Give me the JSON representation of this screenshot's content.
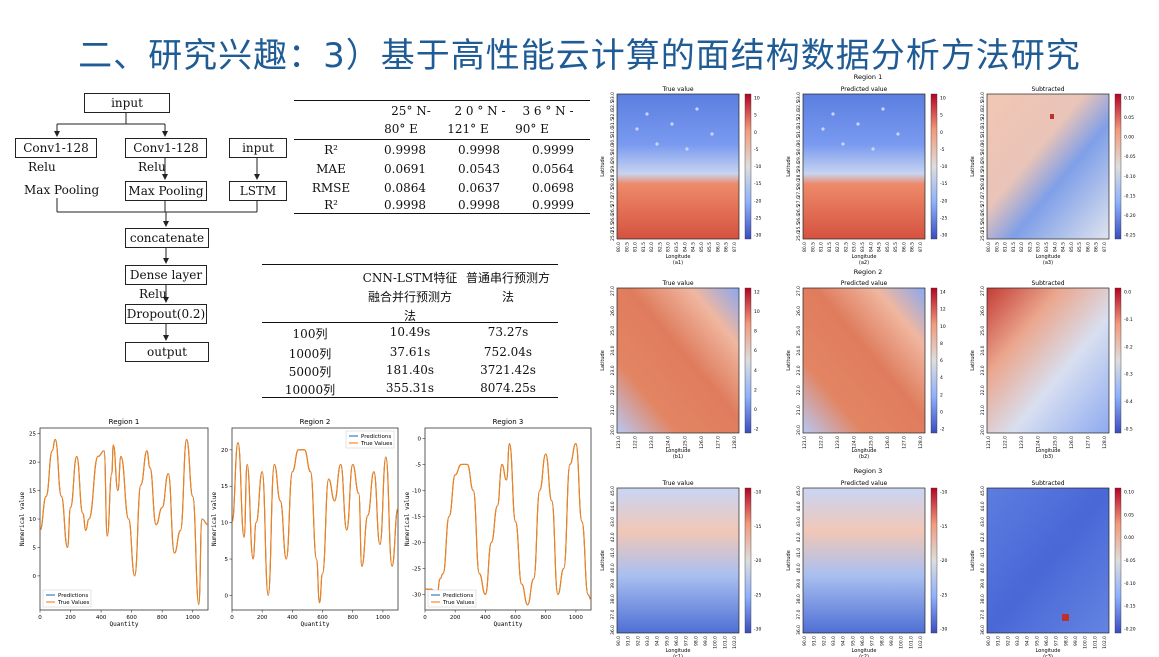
{
  "slide": {
    "title": "二、研究兴趣：3）基于高性能云计算的面结构数据分析方法研究"
  },
  "flow": {
    "input_top": "input",
    "conv1": "Conv1-128",
    "conv2": "Conv1-128",
    "input_right": "input",
    "relu1": "Relu",
    "relu2": "Relu",
    "maxpool1": "Max Pooling",
    "maxpool2": "Max Pooling",
    "lstm": "LSTM",
    "concatenate": "concatenate",
    "dense": "Dense layer",
    "relu3": "Relu",
    "dropout": "Dropout(0.2)",
    "output": "output"
  },
  "metrics_table": {
    "columns": [
      "25° N-80° E",
      "20° N-121° E",
      "36° N-90° E"
    ],
    "col_line1": [
      "25° N-",
      "2 0 ° N -",
      "3 6 ° N -"
    ],
    "col_line2": [
      "80° E",
      "121° E",
      "90° E"
    ],
    "rows": [
      {
        "label": "R²",
        "values": [
          "0.9998",
          "0.9998",
          "0.9999"
        ]
      },
      {
        "label": "MAE",
        "values": [
          "0.0691",
          "0.0543",
          "0.0564"
        ]
      },
      {
        "label": "RMSE",
        "values": [
          "0.0864",
          "0.0637",
          "0.0698"
        ]
      },
      {
        "label": "R²",
        "values": [
          "0.9998",
          "0.9998",
          "0.9999"
        ]
      }
    ]
  },
  "time_table": {
    "col1_lines": [
      "CNN-LSTM特征",
      "融合并行预测方",
      "法"
    ],
    "col2_lines": [
      "普通串行预测方",
      "法"
    ],
    "rows": [
      {
        "label": "100列",
        "v1": "10.49s",
        "v2": "73.27s"
      },
      {
        "label": "1000列",
        "v1": "37.61s",
        "v2": "752.04s"
      },
      {
        "label": "5000列",
        "v1": "181.40s",
        "v2": "3721.42s"
      },
      {
        "label": "10000列",
        "v1": "355.31s",
        "v2": "8074.25s"
      }
    ]
  },
  "chart_data": [
    {
      "type": "line",
      "title": "Region 1",
      "xlabel": "Quantity",
      "ylabel": "Numerical value",
      "xlim": [
        0,
        1100
      ],
      "ylim": [
        -6,
        26
      ],
      "xticks": [
        0,
        200,
        400,
        600,
        800,
        1000
      ],
      "yticks": [
        0,
        5,
        10,
        15,
        20,
        25
      ],
      "legend_position": "lower-left",
      "series": [
        {
          "name": "Predictions",
          "color": "#1f77b4"
        },
        {
          "name": "True Values",
          "color": "#ff7f0e"
        }
      ],
      "x": [
        0,
        40,
        80,
        100,
        140,
        180,
        200,
        240,
        280,
        300,
        320,
        380,
        420,
        440,
        470,
        480,
        510,
        530,
        580,
        620,
        660,
        700,
        720,
        760,
        800,
        840,
        880,
        920,
        960,
        1000,
        1040,
        1060,
        1100
      ],
      "y": [
        8,
        14,
        22,
        24,
        14,
        5,
        12,
        21,
        11,
        8,
        10,
        21,
        22,
        7,
        18,
        23,
        15,
        21,
        10,
        0,
        16,
        22,
        19,
        9,
        12,
        18,
        4,
        8,
        24,
        14,
        -5,
        10,
        9
      ]
    },
    {
      "type": "line",
      "title": "Region 2",
      "xlabel": "Quantity",
      "ylabel": "Numerical value",
      "xlim": [
        0,
        1100
      ],
      "ylim": [
        -2,
        23
      ],
      "xticks": [
        0,
        200,
        400,
        600,
        800,
        1000
      ],
      "yticks": [
        0,
        5,
        10,
        15,
        20
      ],
      "legend_position": "top-right",
      "series": [
        {
          "name": "Predictions",
          "color": "#1f77b4"
        },
        {
          "name": "True Values",
          "color": "#ff7f0e"
        }
      ],
      "x": [
        0,
        40,
        80,
        100,
        140,
        160,
        200,
        240,
        280,
        320,
        360,
        400,
        440,
        480,
        520,
        560,
        580,
        600,
        640,
        680,
        720,
        760,
        800,
        840,
        860,
        900,
        940,
        980,
        1020,
        1060,
        1100
      ],
      "y": [
        10,
        21,
        8,
        18,
        5,
        10,
        17,
        0,
        18,
        13,
        5,
        17,
        20,
        20,
        17,
        5,
        -1,
        3,
        16,
        13,
        18,
        9,
        18,
        14,
        4,
        11,
        17,
        7,
        19,
        4,
        12
      ]
    },
    {
      "type": "line",
      "title": "Region 3",
      "xlabel": "Quantity",
      "ylabel": "Numerical value",
      "xlim": [
        0,
        1100
      ],
      "ylim": [
        -33,
        2
      ],
      "xticks": [
        0,
        200,
        400,
        600,
        800,
        1000
      ],
      "yticks": [
        0,
        -5,
        -10,
        -15,
        -20,
        -25,
        -30
      ],
      "legend_position": "lower-left",
      "series": [
        {
          "name": "Predictions",
          "color": "#1f77b4"
        },
        {
          "name": "True Values",
          "color": "#ff7f0e"
        }
      ],
      "x": [
        0,
        40,
        80,
        100,
        120,
        160,
        200,
        240,
        280,
        320,
        360,
        400,
        440,
        480,
        510,
        540,
        560,
        600,
        640,
        680,
        720,
        760,
        800,
        840,
        880,
        920,
        960,
        1000,
        1040,
        1080,
        1100
      ],
      "y": [
        -29,
        -29,
        -30,
        -27,
        -26,
        -15,
        -7,
        -5,
        -5,
        -10,
        -26,
        -30,
        -20,
        -13,
        -5,
        -8,
        -1,
        -16,
        -28,
        -32,
        -27,
        -10,
        -3,
        -12,
        -30,
        -25,
        -5,
        -1,
        -16,
        -30,
        -31
      ]
    }
  ],
  "heatmaps": {
    "region_titles": [
      "Region 1",
      "Region 2",
      "Region 3"
    ],
    "col_titles": [
      "True value",
      "Predicted value",
      "Subtracted"
    ],
    "xlabel": "Longitude",
    "ylabel": "Latitude",
    "captions": [
      [
        "(a1)",
        "(a2)",
        "(a3)"
      ],
      [
        "(b1)",
        "(b2)",
        "(b3)"
      ],
      [
        "(c1)",
        "(c2)",
        "(c3)"
      ]
    ],
    "colorbars": [
      [
        [
          "10",
          "5",
          "0",
          "-5",
          "-10",
          "-15",
          "-20",
          "-25",
          "-30"
        ],
        [
          "10",
          "5",
          "0",
          "-5",
          "-10",
          "-15",
          "-20",
          "-25",
          "-30"
        ],
        [
          "0.10",
          "0.05",
          "0.00",
          "-0.05",
          "-0.10",
          "-0.15",
          "-0.20",
          "-0.25"
        ]
      ],
      [
        [
          "12",
          "10",
          "8",
          "6",
          "4",
          "2",
          "0",
          "-2"
        ],
        [
          "14",
          "12",
          "10",
          "8",
          "6",
          "4",
          "2",
          "0",
          "-2"
        ],
        [
          "0.0",
          "-0.1",
          "-0.2",
          "-0.3",
          "-0.4",
          "-0.5"
        ]
      ],
      [
        [
          "-10",
          "-15",
          "-20",
          "-25",
          "-30"
        ],
        [
          "-10",
          "-15",
          "-20",
          "-25",
          "-30"
        ],
        [
          "0.10",
          "0.05",
          "0.00",
          "-0.05",
          "-0.10",
          "-0.15",
          "-0.20"
        ]
      ]
    ],
    "yticks": [
      [
        "33.0",
        "32.5",
        "32.0",
        "31.5",
        "31.0",
        "30.5",
        "30.0",
        "29.5",
        "29.0",
        "28.5",
        "28.0",
        "27.5",
        "27.0",
        "26.5",
        "26.0",
        "25.5",
        "25.0"
      ],
      [
        "27.0",
        "26.0",
        "25.0",
        "24.0",
        "23.0",
        "22.0",
        "21.0",
        "20.0"
      ],
      [
        "45.0",
        "44.0",
        "43.0",
        "42.0",
        "41.0",
        "40.0",
        "39.0",
        "38.0",
        "37.0",
        "36.0"
      ]
    ],
    "xticks": [
      [
        "80.0",
        "80.5",
        "81.0",
        "81.5",
        "82.0",
        "82.5",
        "83.0",
        "83.5",
        "84.0",
        "84.5",
        "85.0",
        "85.5",
        "86.0",
        "86.5",
        "87.0"
      ],
      [
        "121.0",
        "122.0",
        "123.0",
        "124.0",
        "125.0",
        "126.0",
        "127.0",
        "128.0"
      ],
      [
        "90.0",
        "91.0",
        "92.0",
        "93.0",
        "94.0",
        "95.0",
        "96.0",
        "97.0",
        "98.0",
        "99.0",
        "100.0",
        "101.0",
        "102.0"
      ]
    ]
  }
}
